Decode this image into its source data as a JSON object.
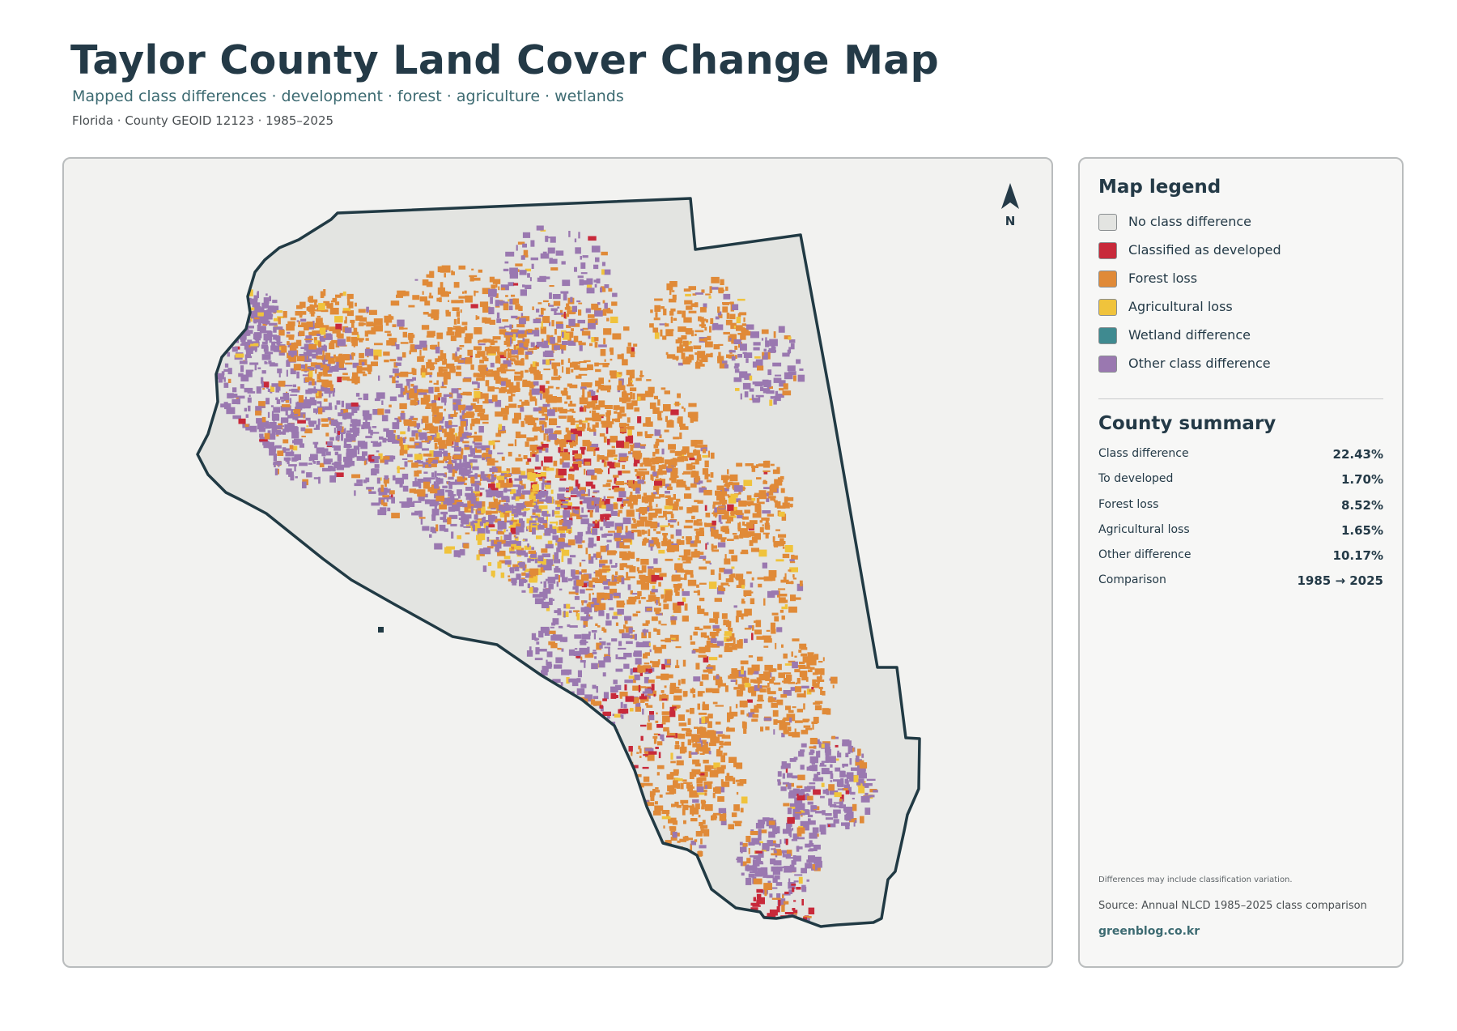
{
  "header": {
    "title": "Taylor County Land Cover Change Map",
    "subtitle": "Mapped class differences · development · forest · agriculture · wetlands",
    "meta": "Florida · County GEOID 12123 · 1985–2025"
  },
  "map": {
    "north_arrow_label": "N"
  },
  "legend": {
    "title": "Map legend",
    "items": [
      {
        "label": "No class difference",
        "color": "#e3e4e1"
      },
      {
        "label": "Classified as developed",
        "color": "#c8293a"
      },
      {
        "label": "Forest loss",
        "color": "#e08a38"
      },
      {
        "label": "Agricultural loss",
        "color": "#f0c33c"
      },
      {
        "label": "Wetland difference",
        "color": "#3f8a90"
      },
      {
        "label": "Other class difference",
        "color": "#9a78b0"
      }
    ]
  },
  "summary": {
    "title": "County summary",
    "rows": [
      {
        "label": "Class difference",
        "value": "22.43%"
      },
      {
        "label": "To developed",
        "value": "1.70%"
      },
      {
        "label": "Forest loss",
        "value": "8.52%"
      },
      {
        "label": "Agricultural loss",
        "value": "1.65%"
      },
      {
        "label": "Other difference",
        "value": "10.17%"
      },
      {
        "label": "Comparison",
        "value": "1985 → 2025"
      }
    ]
  },
  "footer": {
    "note": "Differences may include classification variation.",
    "source": "Source: Annual NLCD 1985–2025 class comparison",
    "site": "greenblog.co.kr"
  }
}
